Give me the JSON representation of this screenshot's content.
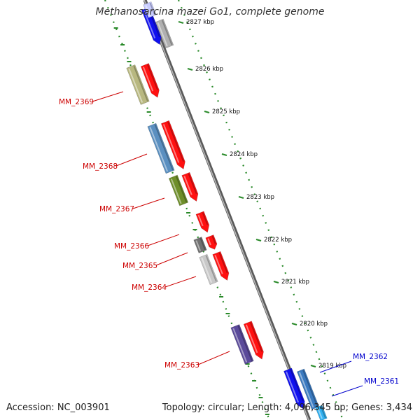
{
  "title": "Methanosarcina mazei Go1, complete genome",
  "footer": {
    "accession": "Accession: NC_003901",
    "topology": "Topology: circular; Length: 4,096,345 bp; Genes: 3,434"
  },
  "colors": {
    "backbone": "#8a8a8a",
    "tick": "#2a8a2a",
    "label_plus": "#cc0000",
    "label_minus": "#0000cc",
    "gene_red": "#ff1010",
    "gene_blue": "#1010ee"
  },
  "kbp_labels": [
    "2827 kbp",
    "2826 kbp",
    "2825 kbp",
    "2824 kbp",
    "2823 kbp",
    "2822 kbp",
    "2821 kbp",
    "2820 kbp",
    "2819 kbp"
  ],
  "labels": [
    {
      "text": "MM_2369",
      "strand": "plus"
    },
    {
      "text": "MM_2368",
      "strand": "plus"
    },
    {
      "text": "MM_2367",
      "strand": "plus"
    },
    {
      "text": "MM_2366",
      "strand": "plus"
    },
    {
      "text": "MM_2365",
      "strand": "plus"
    },
    {
      "text": "MM_2364",
      "strand": "plus"
    },
    {
      "text": "MM_2363",
      "strand": "plus"
    },
    {
      "text": "MM_2362",
      "strand": "minus"
    },
    {
      "text": "MM_2361",
      "strand": "minus"
    }
  ],
  "genes": [
    {
      "id": "top-blue",
      "color": "#1010ee",
      "arrow": true
    },
    {
      "id": "top-gray",
      "color": "#b0b0b0",
      "arrow": false
    },
    {
      "id": "top-lightblue",
      "color": "#c8ccff",
      "arrow": false
    },
    {
      "id": "MM_2369-cds",
      "color": "#b8b880",
      "arrow": false
    },
    {
      "id": "MM_2369",
      "color": "#ff1010",
      "arrow": true
    },
    {
      "id": "MM_2368-cds",
      "color": "#5a8fc0",
      "arrow": false
    },
    {
      "id": "MM_2368",
      "color": "#ff1010",
      "arrow": true
    },
    {
      "id": "MM_2367-cds",
      "color": "#6e8e2a",
      "arrow": false
    },
    {
      "id": "MM_2367",
      "color": "#ff1010",
      "arrow": true
    },
    {
      "id": "MM_2366",
      "color": "#ff1010",
      "arrow": true
    },
    {
      "id": "MM_2365-cds",
      "color": "#707070",
      "arrow": false
    },
    {
      "id": "MM_2365",
      "color": "#ff1010",
      "arrow": true
    },
    {
      "id": "MM_2364-cds",
      "color": "#c8c8c8",
      "arrow": false
    },
    {
      "id": "MM_2364",
      "color": "#ff1010",
      "arrow": true
    },
    {
      "id": "MM_2363-cds",
      "color": "#5a4a9a",
      "arrow": false
    },
    {
      "id": "MM_2363",
      "color": "#ff1010",
      "arrow": true
    },
    {
      "id": "MM_2362",
      "color": "#1010ee",
      "arrow": true
    },
    {
      "id": "MM_2362-cds",
      "color": "#3a7ac0",
      "arrow": false
    },
    {
      "id": "MM_2361",
      "color": "#30b0f0",
      "arrow": false
    }
  ]
}
